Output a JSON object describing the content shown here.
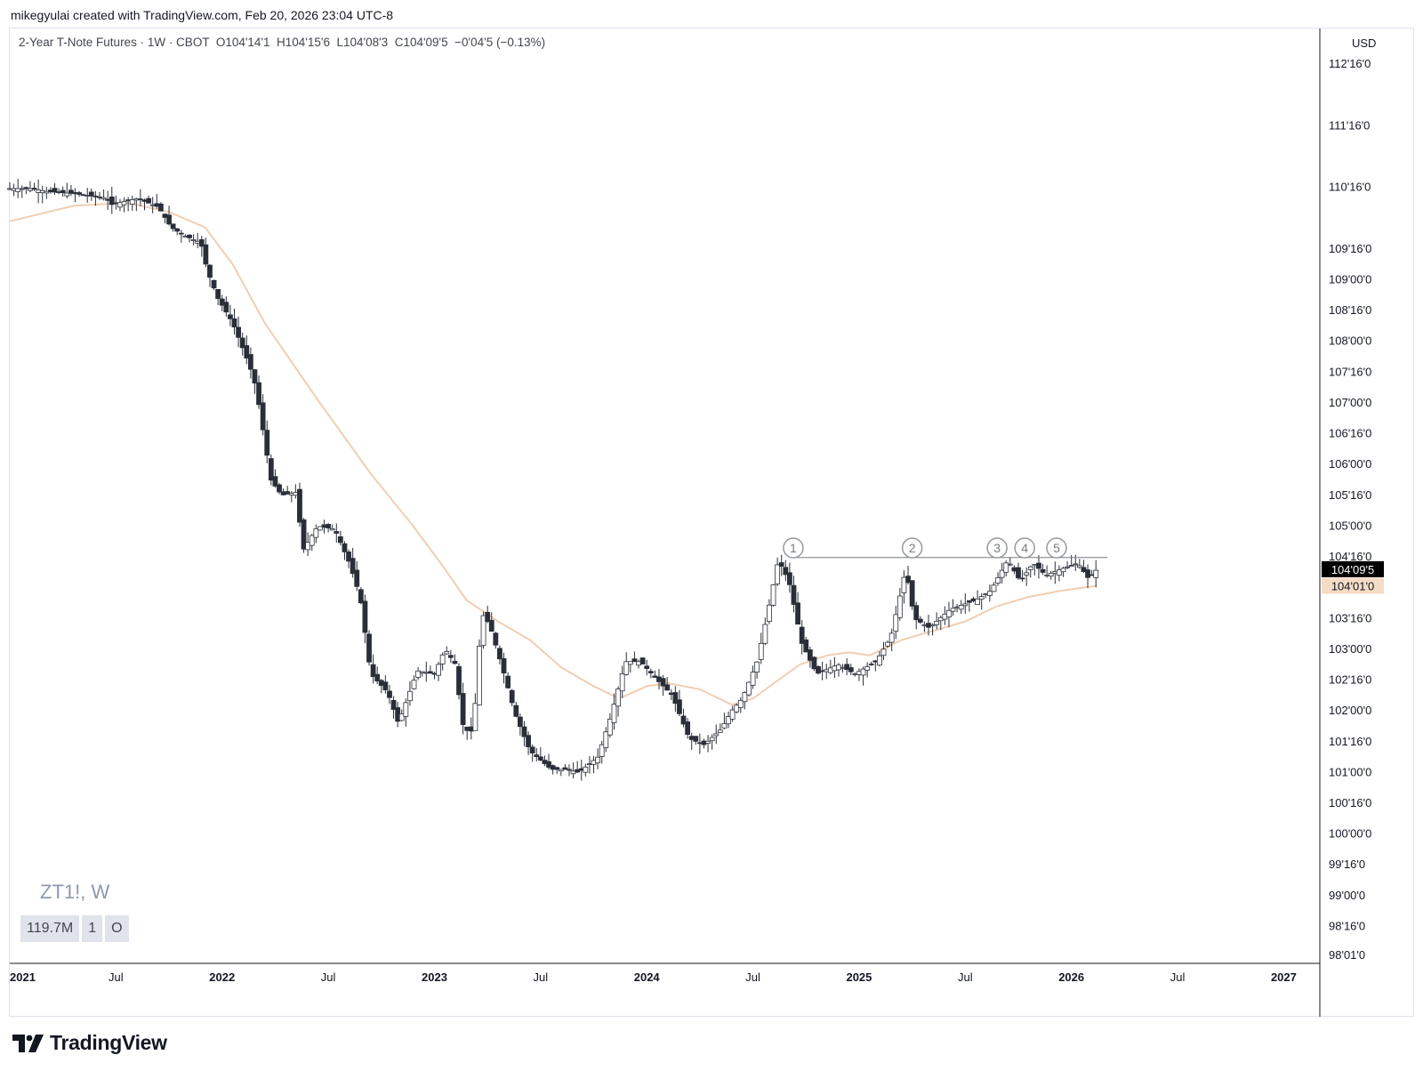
{
  "credit": "mikegyulai created with TradingView.com, Feb 20, 2026 23:04 UTC-8",
  "legend": "2-Year T-Note Futures · 1W · CBOT  O104'14'1  H104'15'6  L104'08'3  C104'09'5  −0'04'5 (−0.13%)",
  "currency": "USD",
  "symbol_label": "ZT1!, W",
  "stats": [
    "119.7M",
    "1",
    "O"
  ],
  "brand": "TradingView",
  "colors": {
    "bear_candle": "#2a2e39",
    "bull_candle": "#ffffff",
    "moving_average": "#efcfb2",
    "resistance_line": "#787b86",
    "last_price_bg": "#000000",
    "ma_price_bg": "#f5dcc4"
  },
  "chart_data": {
    "type": "candlestick",
    "title": "2-Year T-Note Futures",
    "timeframe": "1W",
    "exchange": "CBOT",
    "ohlc_last": {
      "open": "104'14'1",
      "high": "104'15'6",
      "low": "104'08'3",
      "close": "104'09'5",
      "change": "−0'04'5",
      "change_pct": "−0.13%"
    },
    "y_tick_labels": [
      "112'16'0",
      "111'16'0",
      "110'16'0",
      "109'16'0",
      "109'00'0",
      "108'16'0",
      "108'00'0",
      "107'16'0",
      "107'00'0",
      "106'16'0",
      "106'00'0",
      "105'16'0",
      "105'00'0",
      "104'16'0",
      "103'16'0",
      "103'00'0",
      "102'16'0",
      "102'00'0",
      "101'16'0",
      "101'00'0",
      "100'16'0",
      "100'00'0",
      "99'16'0",
      "99'00'0",
      "98'16'0",
      "98'01'0"
    ],
    "y_tick_values": [
      112.5,
      111.5,
      110.5,
      109.5,
      109.0,
      108.5,
      108.0,
      107.5,
      107.0,
      106.5,
      106.0,
      105.5,
      105.0,
      104.5,
      103.5,
      103.0,
      102.5,
      102.0,
      101.5,
      101.0,
      100.5,
      100.0,
      99.5,
      99.0,
      98.5,
      98.03
    ],
    "x_tick_labels": [
      "2021",
      "Jul",
      "2022",
      "Jul",
      "2023",
      "Jul",
      "2024",
      "Jul",
      "2025",
      "Jul",
      "2026",
      "Jul",
      "2027"
    ],
    "x_tick_values": [
      2021.0,
      2021.5,
      2022.0,
      2022.5,
      2023.0,
      2023.5,
      2024.0,
      2024.5,
      2025.0,
      2025.5,
      2026.0,
      2026.5,
      2027.0
    ],
    "x_range": [
      2021.0,
      2027.17
    ],
    "y_range": [
      97.9,
      113.08
    ],
    "last_price": {
      "label": "104'09'5",
      "value": 104.3
    },
    "ma_price": {
      "label": "104'01'0",
      "value": 104.03
    },
    "price_path": [
      [
        2021.0,
        110.48
      ],
      [
        2021.1,
        110.48
      ],
      [
        2021.18,
        110.43
      ],
      [
        2021.3,
        110.4
      ],
      [
        2021.45,
        110.33
      ],
      [
        2021.48,
        110.22
      ],
      [
        2021.6,
        110.32
      ],
      [
        2021.7,
        110.18
      ],
      [
        2021.76,
        109.85
      ],
      [
        2021.82,
        109.72
      ],
      [
        2021.9,
        109.6
      ],
      [
        2021.93,
        109.15
      ],
      [
        2021.98,
        108.7
      ],
      [
        2022.05,
        108.3
      ],
      [
        2022.13,
        107.6
      ],
      [
        2022.16,
        107.25
      ],
      [
        2022.2,
        106.4
      ],
      [
        2022.23,
        105.75
      ],
      [
        2022.28,
        105.5
      ],
      [
        2022.35,
        105.55
      ],
      [
        2022.38,
        104.6
      ],
      [
        2022.45,
        105.0
      ],
      [
        2022.53,
        104.95
      ],
      [
        2022.6,
        104.4
      ],
      [
        2022.65,
        103.85
      ],
      [
        2022.7,
        102.6
      ],
      [
        2022.78,
        102.3
      ],
      [
        2022.83,
        101.8
      ],
      [
        2022.92,
        102.65
      ],
      [
        2023.0,
        102.6
      ],
      [
        2023.05,
        103.0
      ],
      [
        2023.1,
        102.75
      ],
      [
        2023.13,
        101.8
      ],
      [
        2023.17,
        101.6
      ],
      [
        2023.2,
        102.3
      ],
      [
        2023.22,
        103.6
      ],
      [
        2023.26,
        103.4
      ],
      [
        2023.32,
        102.7
      ],
      [
        2023.38,
        101.95
      ],
      [
        2023.45,
        101.35
      ],
      [
        2023.55,
        101.05
      ],
      [
        2023.62,
        101.05
      ],
      [
        2023.68,
        101.0
      ],
      [
        2023.77,
        101.25
      ],
      [
        2023.83,
        101.9
      ],
      [
        2023.9,
        102.8
      ],
      [
        2023.97,
        102.8
      ],
      [
        2024.05,
        102.5
      ],
      [
        2024.12,
        102.25
      ],
      [
        2024.2,
        101.55
      ],
      [
        2024.27,
        101.45
      ],
      [
        2024.35,
        101.7
      ],
      [
        2024.4,
        102.0
      ],
      [
        2024.45,
        102.2
      ],
      [
        2024.52,
        102.8
      ],
      [
        2024.57,
        103.6
      ],
      [
        2024.62,
        104.45
      ],
      [
        2024.67,
        104.1
      ],
      [
        2024.73,
        103.1
      ],
      [
        2024.8,
        102.6
      ],
      [
        2024.9,
        102.75
      ],
      [
        2024.98,
        102.6
      ],
      [
        2025.08,
        102.8
      ],
      [
        2025.15,
        103.2
      ],
      [
        2025.22,
        104.3
      ],
      [
        2025.26,
        103.5
      ],
      [
        2025.33,
        103.35
      ],
      [
        2025.43,
        103.65
      ],
      [
        2025.55,
        103.8
      ],
      [
        2025.62,
        103.95
      ],
      [
        2025.7,
        104.45
      ],
      [
        2025.76,
        104.1
      ],
      [
        2025.82,
        104.4
      ],
      [
        2025.88,
        104.2
      ],
      [
        2025.95,
        104.3
      ],
      [
        2026.03,
        104.4
      ],
      [
        2026.08,
        104.15
      ],
      [
        2026.12,
        104.3
      ]
    ],
    "ma_path": [
      [
        2021.0,
        109.95
      ],
      [
        2021.3,
        110.2
      ],
      [
        2021.55,
        110.25
      ],
      [
        2021.75,
        110.1
      ],
      [
        2021.92,
        109.85
      ],
      [
        2022.05,
        109.25
      ],
      [
        2022.2,
        108.3
      ],
      [
        2022.45,
        107.05
      ],
      [
        2022.7,
        105.85
      ],
      [
        2022.9,
        105.0
      ],
      [
        2023.05,
        104.3
      ],
      [
        2023.15,
        103.8
      ],
      [
        2023.3,
        103.45
      ],
      [
        2023.45,
        103.15
      ],
      [
        2023.6,
        102.7
      ],
      [
        2023.75,
        102.4
      ],
      [
        2023.87,
        102.2
      ],
      [
        2024.0,
        102.4
      ],
      [
        2024.1,
        102.45
      ],
      [
        2024.25,
        102.35
      ],
      [
        2024.4,
        102.1
      ],
      [
        2024.5,
        102.2
      ],
      [
        2024.6,
        102.45
      ],
      [
        2024.72,
        102.75
      ],
      [
        2024.85,
        102.9
      ],
      [
        2024.95,
        102.95
      ],
      [
        2025.05,
        102.9
      ],
      [
        2025.2,
        103.15
      ],
      [
        2025.35,
        103.3
      ],
      [
        2025.5,
        103.45
      ],
      [
        2025.65,
        103.7
      ],
      [
        2025.8,
        103.85
      ],
      [
        2025.95,
        103.95
      ],
      [
        2026.12,
        104.03
      ]
    ],
    "resistance": {
      "value": 104.49,
      "x_start": 2024.7,
      "x_end": 2026.17
    },
    "annotations": [
      {
        "label": "1",
        "x": 2024.69
      },
      {
        "label": "2",
        "x": 2025.25
      },
      {
        "label": "3",
        "x": 2025.65
      },
      {
        "label": "4",
        "x": 2025.78
      },
      {
        "label": "5",
        "x": 2025.93
      }
    ]
  }
}
